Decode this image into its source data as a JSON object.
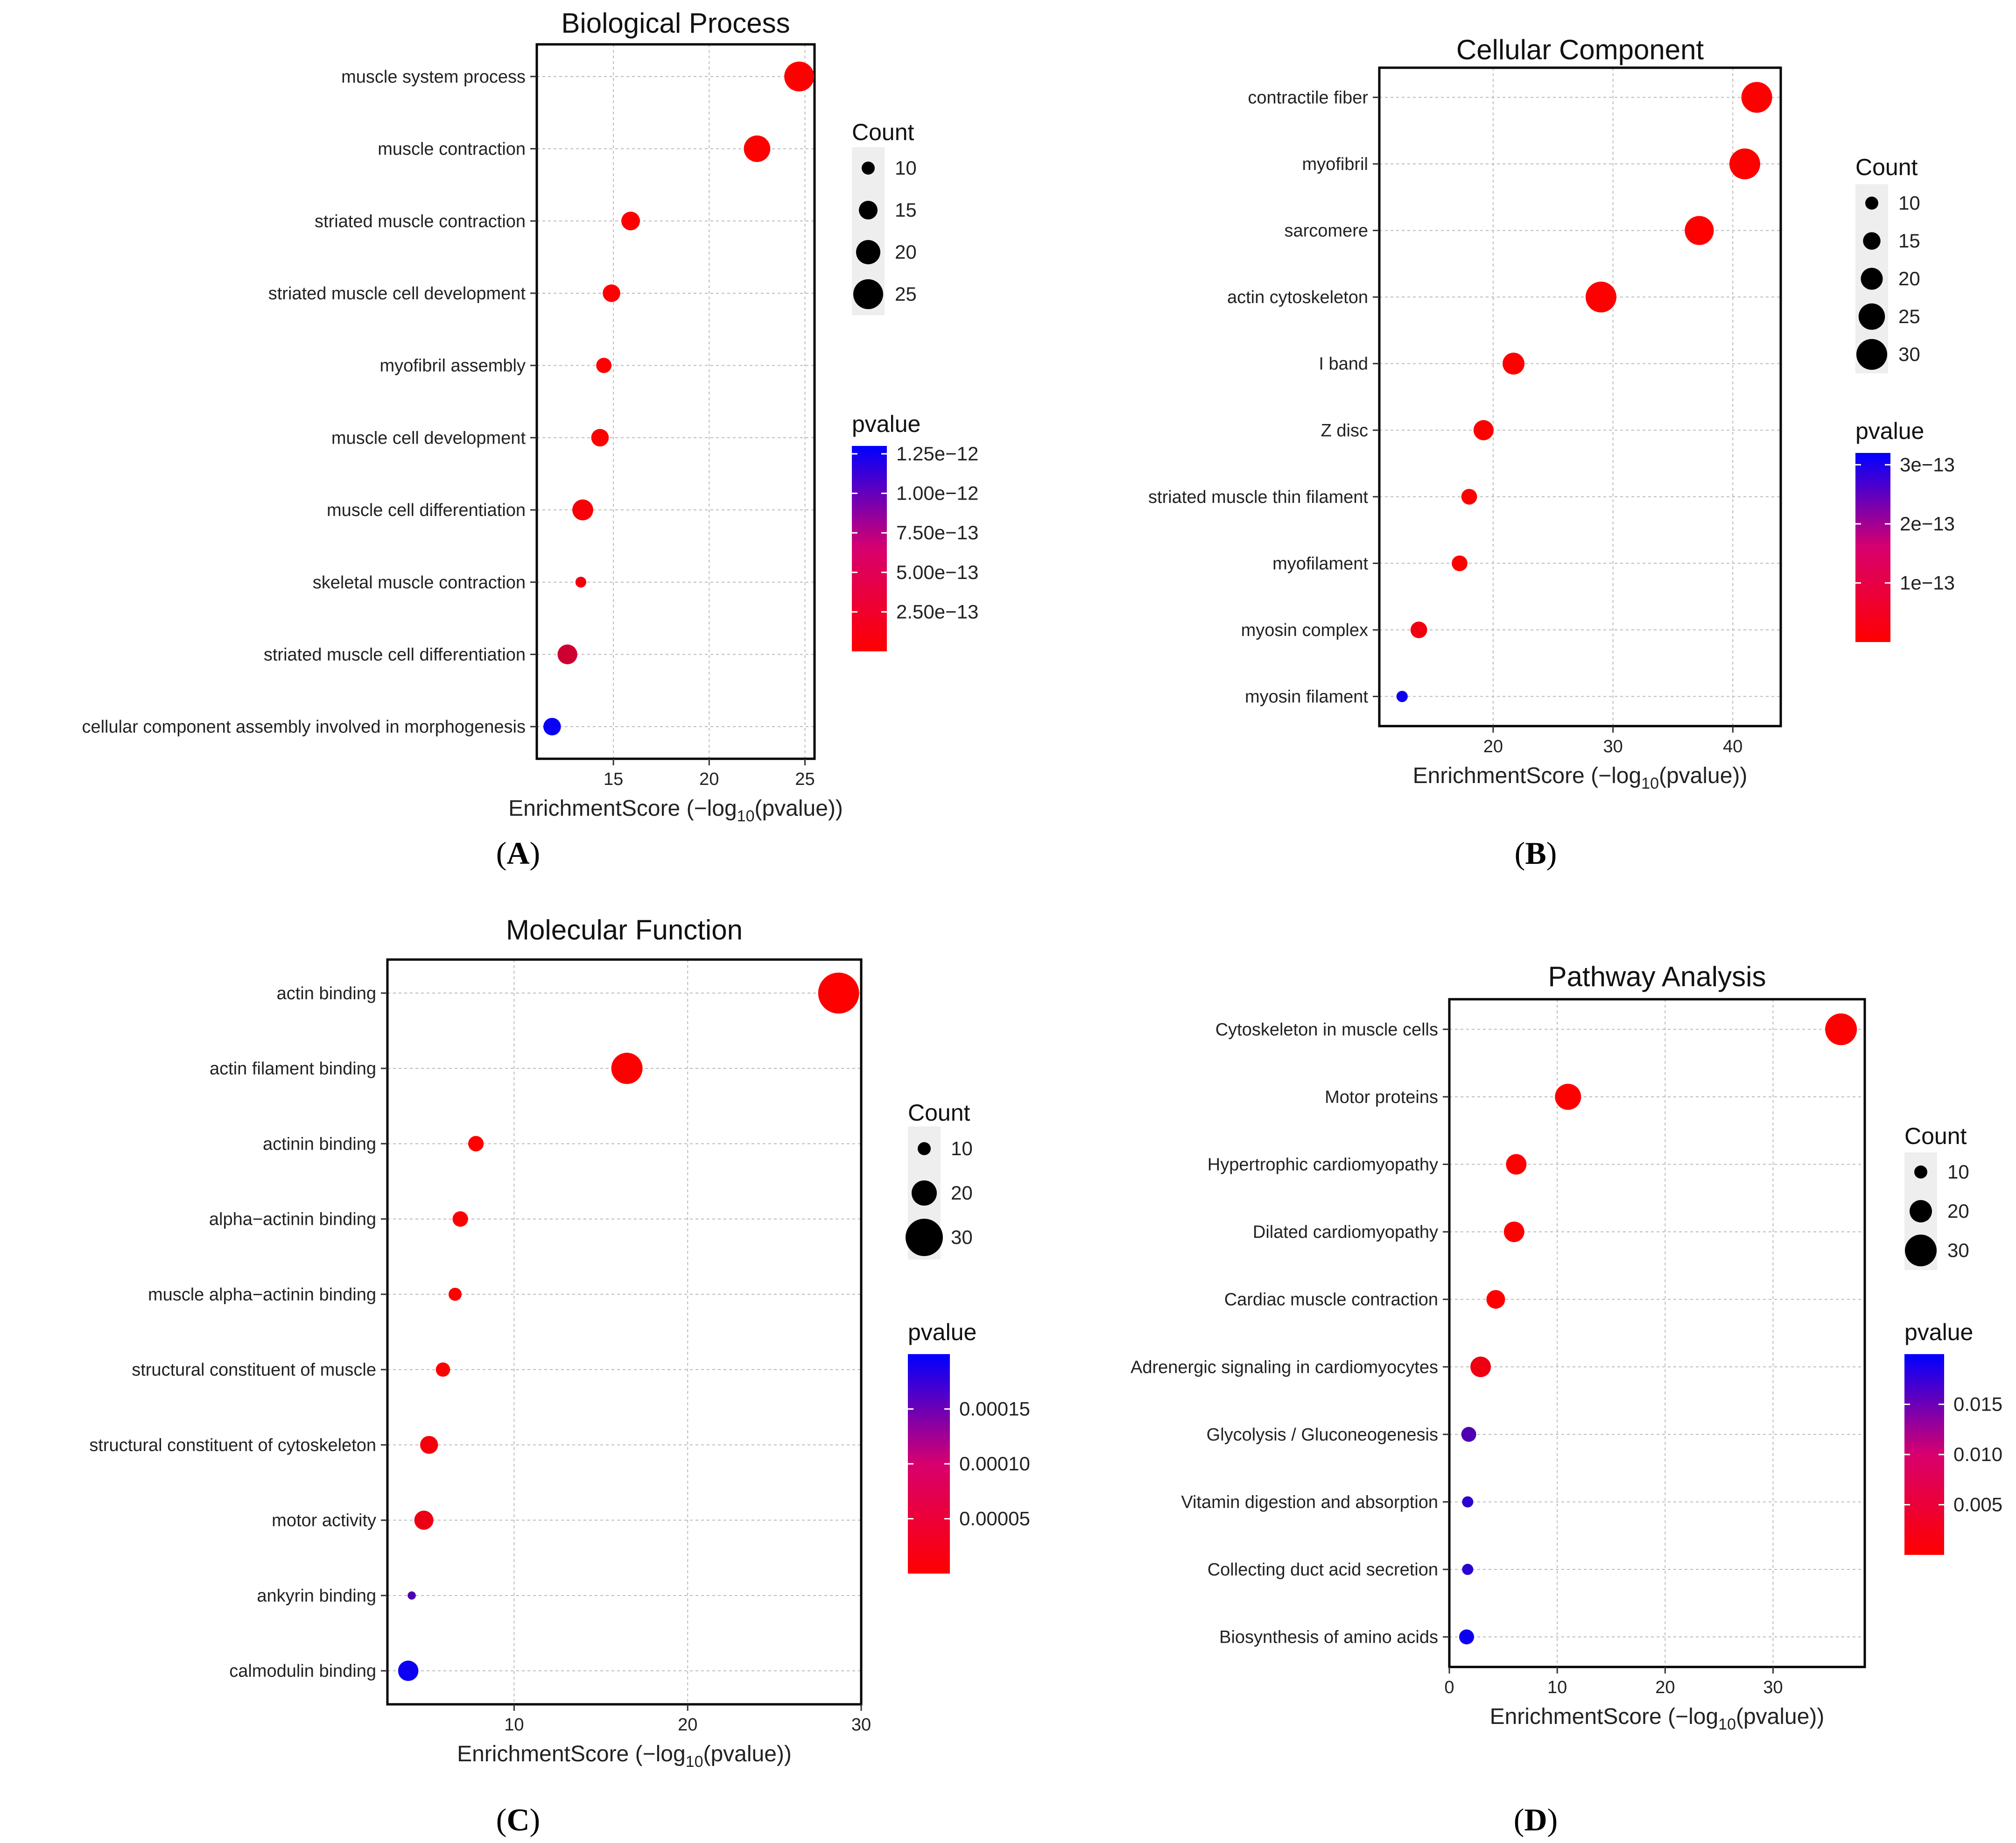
{
  "chart_data": [
    {
      "panel": "A",
      "type": "scatter",
      "title": "Biological Process",
      "xlabel": "EnrichmentScore (−log",
      "xlabel_sub": "10",
      "xlabel_end": "(pvalue))",
      "xlim": [
        11,
        25.5
      ],
      "xticks": [
        15,
        20,
        25
      ],
      "categories": [
        "muscle system process",
        "muscle contraction",
        "striated muscle contraction",
        "striated muscle cell development",
        "myofibril assembly",
        "muscle cell development",
        "muscle cell differentiation",
        "skeletal muscle contraction",
        "striated muscle cell differentiation",
        "cellular component assembly involved in morphogenesis"
      ],
      "enrichment": [
        24.7,
        22.5,
        15.9,
        14.9,
        14.5,
        14.3,
        13.4,
        13.3,
        12.6,
        11.8
      ],
      "count": [
        25,
        22,
        15,
        14,
        12,
        14,
        17,
        8,
        16,
        14
      ],
      "pvalue": [
        2e-25,
        3e-23,
        1.3e-16,
        1.3e-15,
        3e-15,
        5e-15,
        4e-14,
        5e-14,
        2.5e-13,
        1.25e-12
      ],
      "count_legend": {
        "title": "Count",
        "values": [
          10,
          15,
          20,
          25
        ]
      },
      "pvalue_legend": {
        "title": "pvalue",
        "labels": [
          "1.25e−12",
          "1.00e−12",
          "7.50e−13",
          "5.00e−13",
          "2.50e−13"
        ],
        "values": [
          1.25e-12,
          1e-12,
          7.5e-13,
          5e-13,
          2.5e-13
        ],
        "range": [
          0,
          1.3e-12
        ]
      }
    },
    {
      "panel": "B",
      "type": "scatter",
      "title": "Cellular Component",
      "xlabel": "EnrichmentScore (−log",
      "xlabel_sub": "10",
      "xlabel_end": "(pvalue))",
      "xlim": [
        10.5,
        44
      ],
      "xticks": [
        20,
        30,
        40
      ],
      "categories": [
        "contractile fiber",
        "myofibril",
        "sarcomere",
        "actin cytoskeleton",
        "I band",
        "Z disc",
        "striated muscle thin filament",
        "myofilament",
        "myosin complex",
        "myosin filament"
      ],
      "enrichment": [
        42,
        41,
        37.2,
        29,
        21.7,
        19.2,
        18,
        17.2,
        13.8,
        12.4
      ],
      "count": [
        30,
        30,
        28,
        30,
        20,
        18,
        13,
        13,
        14,
        8
      ],
      "pvalue": [
        1e-42,
        1e-41,
        6e-38,
        1e-29,
        2e-22,
        6e-20,
        1e-18,
        6e-18,
        1.6e-14,
        3e-13
      ],
      "count_legend": {
        "title": "Count",
        "values": [
          10,
          15,
          20,
          25,
          30
        ]
      },
      "pvalue_legend": {
        "title": "pvalue",
        "labels": [
          "3e−13",
          "2e−13",
          "1e−13"
        ],
        "values": [
          3e-13,
          2e-13,
          1e-13
        ],
        "range": [
          0,
          3.2e-13
        ]
      }
    },
    {
      "panel": "C",
      "type": "scatter",
      "title": "Molecular Function",
      "xlabel": "EnrichmentScore (−log",
      "xlabel_sub": "10",
      "xlabel_end": "(pvalue))",
      "xlim": [
        2.7,
        30
      ],
      "xticks": [
        10,
        20,
        30
      ],
      "categories": [
        "actin binding",
        "actin filament binding",
        "actinin binding",
        "alpha−actinin binding",
        "muscle alpha−actinin binding",
        "structural constituent of muscle",
        "structural constituent of cytoskeleton",
        "motor activity",
        "ankyrin binding",
        "calmodulin binding"
      ],
      "enrichment": [
        28.7,
        16.5,
        7.8,
        6.9,
        6.6,
        5.9,
        5.1,
        4.8,
        4.1,
        3.9
      ],
      "count": [
        33,
        25,
        12,
        12,
        10,
        11,
        14,
        15,
        6,
        16
      ],
      "pvalue": [
        2e-29,
        3e-17,
        1.6e-08,
        1.3e-07,
        2.5e-07,
        1.3e-06,
        8e-06,
        1.6e-05,
        0.00014,
        0.00019
      ],
      "count_legend": {
        "title": "Count",
        "values": [
          10,
          20,
          30
        ]
      },
      "pvalue_legend": {
        "title": "pvalue",
        "labels": [
          "0.00015",
          "0.00010",
          "0.00005"
        ],
        "values": [
          0.00015,
          0.0001,
          5e-05
        ],
        "range": [
          0,
          0.0002
        ]
      }
    },
    {
      "panel": "D",
      "type": "scatter",
      "title": "Pathway Analysis",
      "xlabel": "EnrichmentScore (−log",
      "xlabel_sub": "10",
      "xlabel_end": "(pvalue))",
      "xlim": [
        0,
        38.5
      ],
      "xticks": [
        0,
        10,
        20,
        30
      ],
      "categories": [
        "Cytoskeleton in muscle cells",
        "Motor proteins",
        "Hypertrophic cardiomyopathy",
        "Dilated cardiomyopathy",
        "Cardiac muscle contraction",
        "Adrenergic signaling in cardiomyocytes",
        "Glycolysis / Gluconeogenesis",
        "Vitamin digestion and absorption",
        "Collecting duct acid secretion",
        "Biosynthesis of amino acids"
      ],
      "enrichment": [
        36.3,
        11,
        6.2,
        6,
        4.3,
        2.9,
        1.8,
        1.7,
        1.7,
        1.6
      ],
      "count": [
        30,
        24,
        18,
        18,
        16,
        18,
        12,
        8,
        8,
        12
      ],
      "pvalue": [
        5e-37,
        1e-11,
        6e-07,
        1e-06,
        5e-05,
        0.0013,
        0.0138,
        0.0165,
        0.0168,
        0.019
      ],
      "count_legend": {
        "title": "Count",
        "values": [
          10,
          20,
          30
        ]
      },
      "pvalue_legend": {
        "title": "pvalue",
        "labels": [
          "0.015",
          "0.010",
          "0.005"
        ],
        "values": [
          0.015,
          0.01,
          0.005
        ],
        "range": [
          0,
          0.02
        ]
      }
    }
  ],
  "panel_labels": [
    "(A)",
    "(B)",
    "(C)",
    "(D)"
  ],
  "colors": {
    "low_p": "#ff0000",
    "high_p": "#0000ff",
    "grid": "#bbbbbb",
    "frame": "#000000"
  }
}
